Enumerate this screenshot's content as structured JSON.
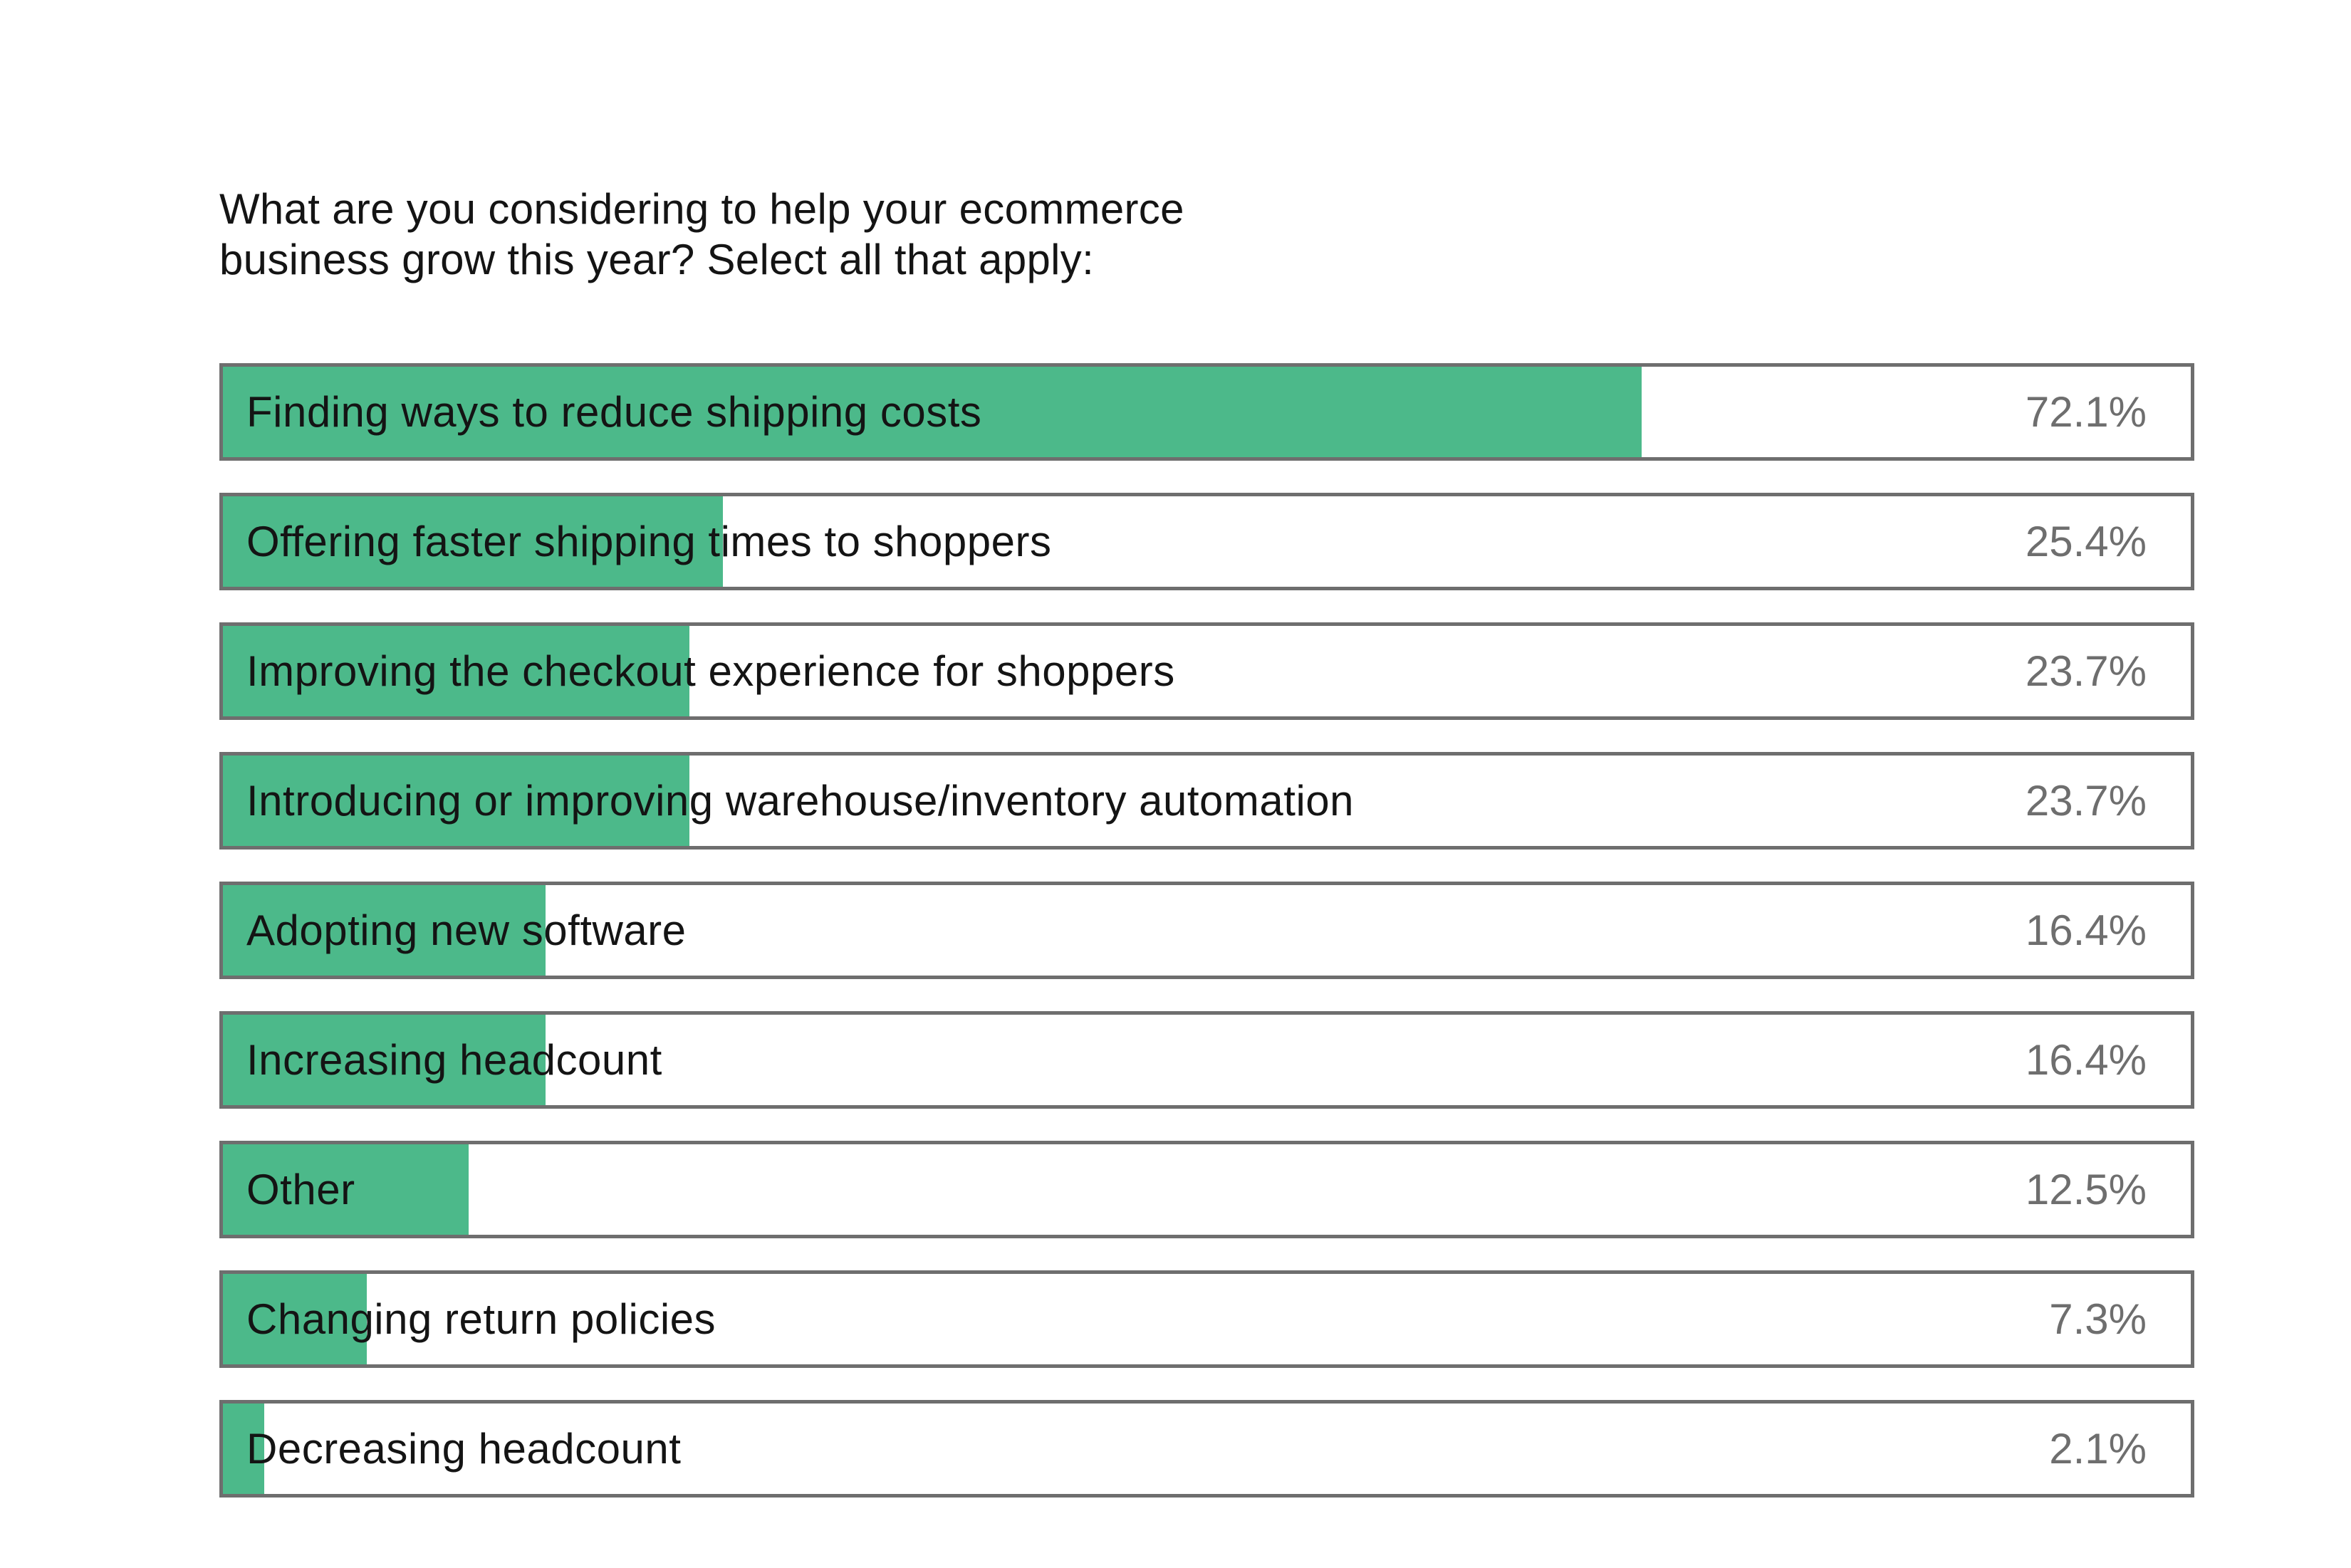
{
  "chart_data": {
    "type": "bar",
    "title": "What are you considering to help your ecommerce business grow this year? Select all that apply:",
    "title_lines": [
      "What are you considering to help your ecommerce",
      "business grow this year? Select all that apply:"
    ],
    "categories": [
      "Finding ways to reduce shipping costs",
      "Offering faster shipping times to shoppers",
      "Improving the checkout experience for shoppers",
      "Introducing or improving warehouse/inventory automation",
      "Adopting new software",
      "Increasing headcount",
      "Other",
      "Changing return policies",
      "Decreasing headcount"
    ],
    "values": [
      72.1,
      25.4,
      23.7,
      23.7,
      16.4,
      16.4,
      12.5,
      7.3,
      2.1
    ],
    "value_labels": [
      "72.1%",
      "25.4%",
      "23.7%",
      "23.7%",
      "16.4%",
      "16.4%",
      "12.5%",
      "7.3%",
      "2.1%"
    ],
    "xlim": [
      0,
      100
    ],
    "orientation": "horizontal",
    "grid": false,
    "colors": {
      "fill": "#4cb98a",
      "border": "#6e6e6e",
      "label_text": "#141414",
      "value_text": "#6e6e6e"
    }
  }
}
